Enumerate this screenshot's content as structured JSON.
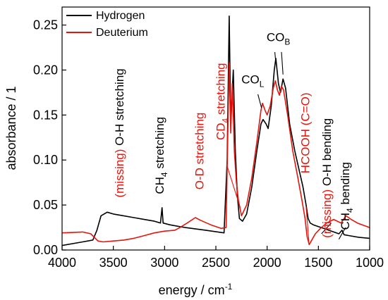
{
  "colors": {
    "hydrogen": "#000000",
    "deuterium": "#e8140c",
    "axis": "#000000"
  },
  "chart_data": {
    "type": "line",
    "title": "",
    "xlabel": "energy / cm",
    "xlabel_sup": "-1",
    "ylabel": "absorbance / 1",
    "xlim": [
      4000,
      1000
    ],
    "ylim": [
      0.0,
      0.27
    ],
    "x_reversed": true,
    "x_ticks": [
      4000,
      3500,
      3000,
      2500,
      2000,
      1500,
      1000
    ],
    "x_tick_labels": [
      "4000",
      "3500",
      "3000",
      "2500",
      "2000",
      "1500",
      "1000"
    ],
    "y_ticks": [
      0.0,
      0.05,
      0.1,
      0.15,
      0.2,
      0.25
    ],
    "y_tick_labels": [
      "0.00",
      "0.05",
      "0.10",
      "0.15",
      "0.20",
      "0.25"
    ],
    "legend": {
      "position": "top-left",
      "entries": [
        "Hydrogen",
        "Deuterium"
      ]
    },
    "series": [
      {
        "name": "Hydrogen",
        "color": "#000000",
        "points": [
          [
            4000,
            0.005
          ],
          [
            3800,
            0.009
          ],
          [
            3700,
            0.011
          ],
          [
            3660,
            0.022
          ],
          [
            3620,
            0.038
          ],
          [
            3560,
            0.042
          ],
          [
            3500,
            0.04
          ],
          [
            3400,
            0.038
          ],
          [
            3300,
            0.036
          ],
          [
            3200,
            0.034
          ],
          [
            3100,
            0.032
          ],
          [
            3040,
            0.03
          ],
          [
            3025,
            0.047
          ],
          [
            3015,
            0.03
          ],
          [
            2950,
            0.028
          ],
          [
            2800,
            0.025
          ],
          [
            2600,
            0.022
          ],
          [
            2420,
            0.019
          ],
          [
            2390,
            0.1
          ],
          [
            2370,
            0.26
          ],
          [
            2355,
            0.14
          ],
          [
            2330,
            0.2
          ],
          [
            2310,
            0.11
          ],
          [
            2290,
            0.06
          ],
          [
            2270,
            0.035
          ],
          [
            2240,
            0.032
          ],
          [
            2200,
            0.04
          ],
          [
            2150,
            0.07
          ],
          [
            2100,
            0.11
          ],
          [
            2060,
            0.14
          ],
          [
            2040,
            0.145
          ],
          [
            2010,
            0.14
          ],
          [
            1990,
            0.135
          ],
          [
            1960,
            0.16
          ],
          [
            1930,
            0.2
          ],
          [
            1915,
            0.213
          ],
          [
            1890,
            0.185
          ],
          [
            1870,
            0.175
          ],
          [
            1845,
            0.19
          ],
          [
            1820,
            0.18
          ],
          [
            1780,
            0.14
          ],
          [
            1730,
            0.11
          ],
          [
            1690,
            0.09
          ],
          [
            1650,
            0.07
          ],
          [
            1620,
            0.05
          ],
          [
            1600,
            0.035
          ],
          [
            1580,
            0.03
          ],
          [
            1550,
            0.028
          ],
          [
            1500,
            0.026
          ],
          [
            1450,
            0.024
          ],
          [
            1400,
            0.022
          ],
          [
            1350,
            0.02
          ],
          [
            1300,
            0.018
          ],
          [
            1270,
            0.022
          ],
          [
            1250,
            0.017
          ],
          [
            1200,
            0.016
          ],
          [
            1100,
            0.014
          ],
          [
            1000,
            0.013
          ]
        ]
      },
      {
        "name": "Deuterium",
        "color": "#e8140c",
        "points": [
          [
            4000,
            0.019
          ],
          [
            3800,
            0.02
          ],
          [
            3720,
            0.018
          ],
          [
            3650,
            0.01
          ],
          [
            3600,
            0.009
          ],
          [
            3500,
            0.01
          ],
          [
            3400,
            0.011
          ],
          [
            3300,
            0.013
          ],
          [
            3200,
            0.016
          ],
          [
            3100,
            0.019
          ],
          [
            3000,
            0.021
          ],
          [
            2900,
            0.022
          ],
          [
            2850,
            0.025
          ],
          [
            2780,
            0.03
          ],
          [
            2700,
            0.036
          ],
          [
            2650,
            0.033
          ],
          [
            2550,
            0.028
          ],
          [
            2450,
            0.024
          ],
          [
            2400,
            0.025
          ],
          [
            2385,
            0.12
          ],
          [
            2370,
            0.208
          ],
          [
            2355,
            0.13
          ],
          [
            2340,
            0.185
          ],
          [
            2320,
            0.11
          ],
          [
            2300,
            0.075
          ],
          [
            2280,
            0.055
          ],
          [
            2262,
            0.045
          ],
          [
            2250,
            0.038
          ],
          [
            2200,
            0.05
          ],
          [
            2150,
            0.08
          ],
          [
            2100,
            0.12
          ],
          [
            2060,
            0.155
          ],
          [
            2045,
            0.163
          ],
          [
            2020,
            0.155
          ],
          [
            2000,
            0.15
          ],
          [
            1970,
            0.16
          ],
          [
            1940,
            0.18
          ],
          [
            1920,
            0.188
          ],
          [
            1900,
            0.178
          ],
          [
            1880,
            0.172
          ],
          [
            1860,
            0.182
          ],
          [
            1840,
            0.178
          ],
          [
            1800,
            0.15
          ],
          [
            1750,
            0.11
          ],
          [
            1700,
            0.08
          ],
          [
            1660,
            0.055
          ],
          [
            1630,
            0.035
          ],
          [
            1610,
            0.015
          ],
          [
            1590,
            0.006
          ],
          [
            1570,
            0.01
          ],
          [
            1530,
            0.018
          ],
          [
            1480,
            0.024
          ],
          [
            1420,
            0.03
          ],
          [
            1350,
            0.034
          ],
          [
            1280,
            0.03
          ],
          [
            1230,
            0.038
          ],
          [
            1180,
            0.034
          ],
          [
            1120,
            0.03
          ],
          [
            1050,
            0.027
          ],
          [
            1000,
            0.025
          ]
        ]
      }
    ],
    "annotations": [
      {
        "id": "oh-stretch",
        "parts": [
          {
            "text": "(missing)",
            "color": "#e8140c"
          },
          {
            "text": " O-H stretching",
            "color": "#000000"
          }
        ],
        "at": [
          3400,
          0.13
        ],
        "rotation": -90
      },
      {
        "id": "ch4-stretch",
        "parts": [
          {
            "text": "CH",
            "color": "#000000"
          },
          {
            "text": "4",
            "color": "#000000",
            "sub": true
          },
          {
            "text": " stretching",
            "color": "#000000"
          }
        ],
        "at": [
          3010,
          0.105
        ],
        "rotation": -90
      },
      {
        "id": "od-stretch",
        "parts": [
          {
            "text": "O-D stretching",
            "color": "#e8140c"
          }
        ],
        "at": [
          2620,
          0.11
        ],
        "rotation": -90
      },
      {
        "id": "cd4-stretch",
        "parts": [
          {
            "text": "CD",
            "color": "#e8140c"
          },
          {
            "text": "4",
            "color": "#e8140c",
            "sub": true
          },
          {
            "text": " stretching",
            "color": "#e8140c"
          }
        ],
        "at": [
          2415,
          0.165
        ],
        "rotation": -90
      },
      {
        "id": "col",
        "parts": [
          {
            "text": "CO",
            "color": "#000000"
          },
          {
            "text": "L",
            "color": "#000000",
            "sub": true
          }
        ],
        "at": [
          2140,
          0.185
        ],
        "rotation": 0
      },
      {
        "id": "cob",
        "parts": [
          {
            "text": "CO",
            "color": "#000000"
          },
          {
            "text": "B",
            "color": "#000000",
            "sub": true
          }
        ],
        "at": [
          1890,
          0.232
        ],
        "rotation": 0
      },
      {
        "id": "hcooh",
        "parts": [
          {
            "text": "HCOOH (C=O)",
            "color": "#e8140c"
          }
        ],
        "at": [
          1590,
          0.13
        ],
        "rotation": -90
      },
      {
        "id": "oh-bend",
        "parts": [
          {
            "text": "(missing)",
            "color": "#e8140c"
          },
          {
            "text": " O-H bending",
            "color": "#000000"
          }
        ],
        "at": [
          1380,
          0.08
        ],
        "rotation": -90
      },
      {
        "id": "ch4-bend",
        "parts": [
          {
            "text": "CH",
            "color": "#000000"
          },
          {
            "text": "4",
            "color": "#000000",
            "sub": true
          },
          {
            "text": " bending",
            "color": "#000000"
          }
        ],
        "at": [
          1200,
          0.06
        ],
        "rotation": -90
      }
    ],
    "leader_lines": [
      {
        "color": "#000000",
        "from": [
          2090,
          0.173
        ],
        "to": [
          2055,
          0.158
        ]
      },
      {
        "color": "#000000",
        "from": [
          1925,
          0.22
        ],
        "to": [
          1915,
          0.208
        ]
      },
      {
        "color": "#000000",
        "from": [
          1860,
          0.22
        ],
        "to": [
          1845,
          0.195
        ]
      },
      {
        "color": "#e8140c",
        "from": [
          2395,
          0.095
        ],
        "to": [
          2262,
          0.047
        ]
      },
      {
        "color": "#e8140c",
        "from": [
          1620,
          0.048
        ],
        "to": [
          1592,
          0.009
        ]
      },
      {
        "color": "#000000",
        "from": [
          1470,
          0.018
        ],
        "to": [
          1375,
          0.03
        ]
      },
      {
        "color": "#000000",
        "from": [
          1300,
          0.012
        ],
        "to": [
          1235,
          0.025
        ]
      }
    ]
  }
}
